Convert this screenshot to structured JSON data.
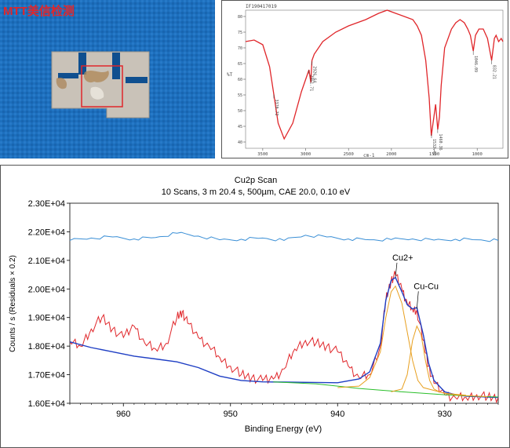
{
  "photo": {
    "logo_text": "MTT美信检测",
    "colors": {
      "background": "#1d6fbd",
      "sample": "#c9c2b8",
      "highlight_box": "#e0262a",
      "logo_red": "#e0262a"
    }
  },
  "chart_data": [
    {
      "type": "line",
      "chart_id": "ir_spectrum",
      "title": "",
      "header_code": "IF190417019",
      "xlabel": "cm-1",
      "ylabel": "%T",
      "x_ticks": [
        3500,
        3000,
        2500,
        2000,
        1500,
        1000
      ],
      "y_ticks": [
        40,
        45,
        50,
        55,
        60,
        65,
        70,
        75,
        80
      ],
      "xlim": [
        3700,
        700
      ],
      "ylim": [
        38,
        82
      ],
      "series": [
        {
          "color": "#e0262a",
          "x": [
            3700,
            3600,
            3500,
            3420,
            3370,
            3320,
            3250,
            3150,
            3050,
            2961,
            2940,
            2926,
            2900,
            2800,
            2650,
            2500,
            2300,
            2150,
            2050,
            1950,
            1850,
            1750,
            1700,
            1650,
            1600,
            1560,
            1535,
            1505,
            1485,
            1460,
            1440,
            1420,
            1380,
            1300,
            1250,
            1200,
            1150,
            1110,
            1080,
            1046,
            1020,
            980,
            930,
            880,
            832,
            800,
            780,
            750,
            720,
            700
          ],
          "y": [
            72,
            72.5,
            71,
            64,
            55,
            46,
            41,
            46,
            56,
            63,
            59,
            66,
            68,
            72,
            75,
            77,
            79,
            81,
            82,
            81,
            80,
            79,
            77,
            74,
            66,
            54,
            42,
            48,
            52,
            44,
            48,
            58,
            70,
            76,
            78,
            79,
            78,
            76,
            74,
            69,
            74,
            76,
            76,
            73,
            66,
            73,
            74,
            72,
            73,
            72
          ]
        }
      ],
      "annotations": [
        {
          "x": 3370.72,
          "label": "3370.72"
        },
        {
          "x": 2961.71,
          "label": "2961.71"
        },
        {
          "x": 2926.64,
          "label": "2926.64"
        },
        {
          "x": 1532.48,
          "label": "1532.48"
        },
        {
          "x": 1460.36,
          "label": "1460.36"
        },
        {
          "x": 1046.09,
          "label": "1046.09"
        },
        {
          "x": 832.21,
          "label": "832.21"
        }
      ]
    },
    {
      "type": "line",
      "chart_id": "cu2p_xps",
      "title": "Cu2p Scan",
      "subtitle": "10 Scans,  3 m 20.4 s,  500µm,  CAE 20.0,  0.10 eV",
      "xlabel": "Binding Energy (eV)",
      "ylabel": "Counts / s  (Residuals × 0.2)",
      "x_ticks": [
        960,
        950,
        940,
        930
      ],
      "y_ticks": [
        "1.60E+04",
        "1.70E+04",
        "1.80E+04",
        "1.90E+04",
        "2.00E+04",
        "2.10E+04",
        "2.20E+04",
        "2.30E+04"
      ],
      "xlim": [
        965,
        925
      ],
      "ylim": [
        16000,
        23000
      ],
      "grid": false,
      "annotations": [
        {
          "x": 934.6,
          "y": 20400,
          "label": "Cu2+"
        },
        {
          "x": 932.6,
          "y": 19300,
          "label": "Cu-Cu"
        }
      ],
      "series": [
        {
          "color": "#e0262a",
          "x": [
            965,
            964,
            963,
            962,
            961,
            960,
            959,
            958,
            957,
            956,
            955,
            954.5,
            954,
            953,
            952,
            951,
            950,
            949,
            948,
            947,
            946,
            945,
            944,
            943,
            942,
            941,
            940,
            939,
            938,
            937,
            936,
            935.5,
            935,
            934.6,
            934,
            933.5,
            933,
            932.6,
            932,
            931.5,
            931,
            930,
            929,
            928,
            927,
            926,
            925
          ],
          "y": [
            18150,
            18000,
            18600,
            19000,
            18600,
            18300,
            18700,
            18100,
            17900,
            18100,
            19000,
            19200,
            18800,
            18300,
            18000,
            17600,
            17300,
            17000,
            16900,
            16800,
            16850,
            17200,
            17900,
            18200,
            18100,
            18000,
            17800,
            17300,
            16900,
            17000,
            18000,
            19600,
            20300,
            20500,
            20000,
            19500,
            19300,
            19250,
            18200,
            17300,
            16700,
            16300,
            16200,
            16200,
            16300,
            16200,
            16200
          ]
        },
        {
          "color": "#1f3fc4",
          "x": [
            965,
            963,
            961,
            959,
            957,
            955,
            953,
            951,
            949,
            947,
            945,
            940,
            938,
            937,
            936,
            935.5,
            935,
            934.6,
            934,
            933.5,
            933,
            932.6,
            932,
            931.5,
            931,
            930,
            929,
            928,
            926,
            925
          ],
          "y": [
            18150,
            17950,
            17800,
            17650,
            17550,
            17450,
            17250,
            16950,
            16800,
            16750,
            16740,
            16720,
            16850,
            17100,
            18100,
            19600,
            20300,
            20400,
            19900,
            19450,
            19300,
            19350,
            18400,
            17400,
            16800,
            16400,
            16300,
            16250,
            16220,
            16200
          ]
        },
        {
          "color": "#2bbf2b",
          "x": [
            946,
            942,
            940,
            938,
            936,
            934,
            932,
            930,
            928,
            926,
            925
          ],
          "y": [
            16750,
            16680,
            16600,
            16520,
            16460,
            16400,
            16350,
            16300,
            16260,
            16230,
            16220
          ]
        },
        {
          "color": "#e8a020",
          "x": [
            940,
            938,
            937,
            936,
            935.5,
            935,
            934.6,
            934,
            933.5,
            933,
            932.5,
            932,
            931,
            930,
            929,
            928,
            926
          ],
          "y": [
            16550,
            16600,
            16900,
            17800,
            19000,
            19900,
            20100,
            19500,
            18500,
            17500,
            16800,
            16550,
            16450,
            16350,
            16300,
            16270,
            16230
          ]
        },
        {
          "color": "#e8a020",
          "x": [
            935,
            934,
            933.5,
            933,
            932.6,
            932.2,
            931.8,
            931.4,
            931,
            930.5,
            930,
            928
          ],
          "y": [
            16400,
            16500,
            17000,
            18200,
            18700,
            18400,
            17500,
            16800,
            16500,
            16400,
            16350,
            16280
          ]
        },
        {
          "color": "#3a8fd6",
          "residual": true,
          "x": [
            965,
            963,
            961,
            959,
            957,
            955,
            953,
            951,
            949,
            947,
            945,
            943,
            941,
            939,
            937,
            935,
            933,
            931,
            929,
            927,
            925
          ],
          "y": [
            21700,
            21780,
            21820,
            21750,
            21800,
            21950,
            21850,
            21720,
            21740,
            21780,
            21700,
            21880,
            21820,
            21750,
            21720,
            21730,
            21750,
            21710,
            21740,
            21720,
            21700
          ]
        }
      ]
    }
  ]
}
